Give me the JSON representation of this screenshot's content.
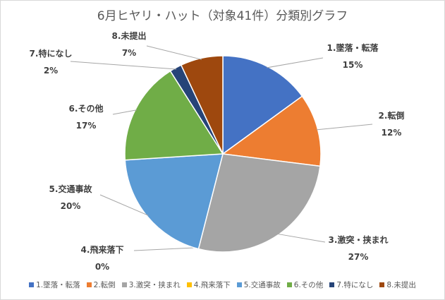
{
  "chart_data": {
    "type": "pie",
    "title": "6月ヒヤリ・ハット（対象41件）分類別グラフ",
    "slices": [
      {
        "name": "1.墜落・転落",
        "value": 15,
        "label": "15%",
        "color": "#4472C4"
      },
      {
        "name": "2.転倒",
        "value": 12,
        "label": "12%",
        "color": "#ED7D31"
      },
      {
        "name": "3.激突・挟まれ",
        "value": 27,
        "label": "27%",
        "color": "#A5A5A5"
      },
      {
        "name": "4.飛来落下",
        "value": 0,
        "label": "0%",
        "color": "#FFC000"
      },
      {
        "name": "5.交通事故",
        "value": 20,
        "label": "20%",
        "color": "#5B9BD5"
      },
      {
        "name": "6.その他",
        "value": 17,
        "label": "17%",
        "color": "#70AD47"
      },
      {
        "name": "7.特になし",
        "value": 2,
        "label": "2%",
        "color": "#264478"
      },
      {
        "name": "8.未提出",
        "value": 7,
        "label": "7%",
        "color": "#9E480E"
      }
    ],
    "legend_position": "bottom"
  }
}
